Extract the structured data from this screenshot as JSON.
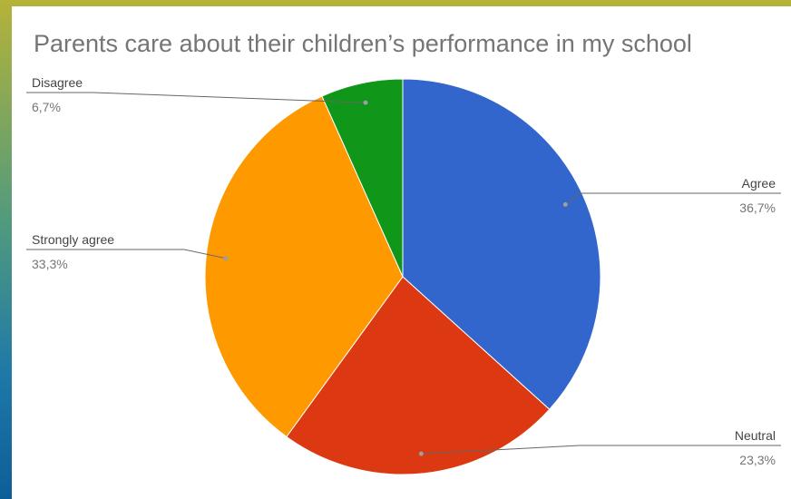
{
  "chart_data": {
    "type": "pie",
    "title": "Parents care about their children’s performance in my school",
    "slices": [
      {
        "label": "Agree",
        "value": 36.7,
        "display": "36,7%",
        "color": "#3366cc"
      },
      {
        "label": "Neutral",
        "value": 23.3,
        "display": "23,3%",
        "color": "#dc3912"
      },
      {
        "label": "Strongly agree",
        "value": 33.3,
        "display": "33,3%",
        "color": "#ff9900"
      },
      {
        "label": "Disagree",
        "value": 6.7,
        "display": "6,7%",
        "color": "#109618"
      }
    ],
    "legend": "callout labels"
  }
}
